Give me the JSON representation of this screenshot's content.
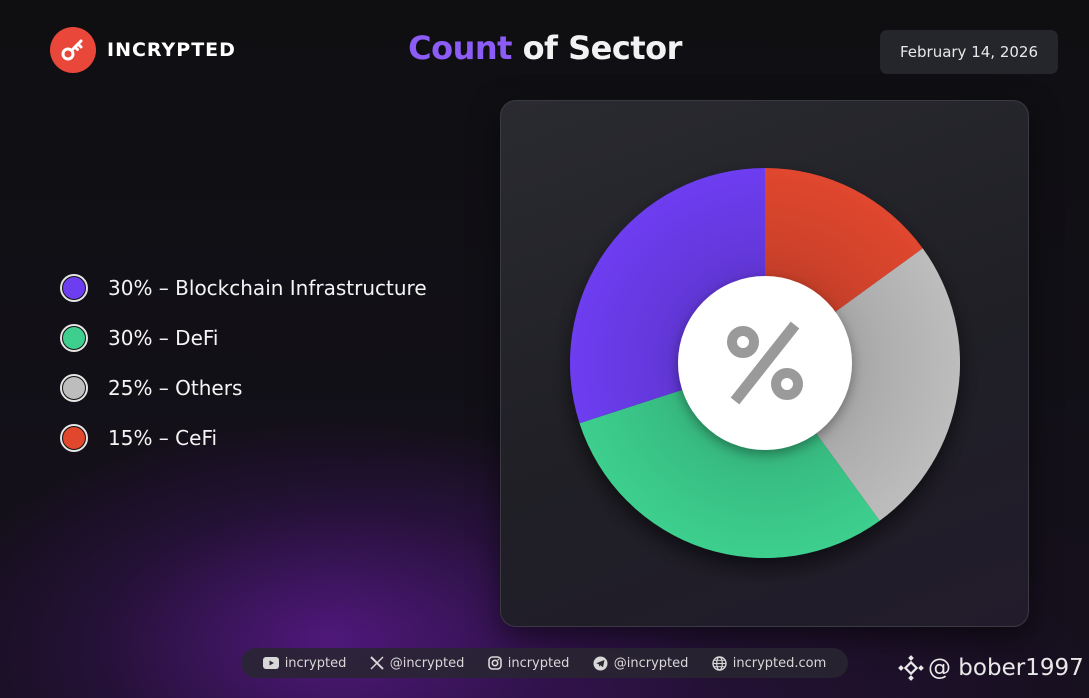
{
  "brand": {
    "name": "INCRYPTED",
    "logo_color": "#e8473a"
  },
  "title": {
    "accent": "Count",
    "rest": " of Sector",
    "accent_color": "#8b5cf6"
  },
  "date": "February 14, 2026",
  "center_icon": "percent-icon",
  "chart_data": {
    "type": "pie",
    "title": "Count of Sector",
    "donut": true,
    "start_angle": "12 o'clock, clockwise",
    "legend_placement": "left",
    "slices": [
      {
        "label": "CeFi",
        "value": 15,
        "legend_text": "15% – CeFi",
        "color": "#e0472d"
      },
      {
        "label": "Others",
        "value": 25,
        "legend_text": "25% – Others",
        "color": "#bdbdbd"
      },
      {
        "label": "DeFi",
        "value": 30,
        "legend_text": "30% – DeFi",
        "color": "#3ecf8e"
      },
      {
        "label": "Blockchain Infrastructure",
        "value": 30,
        "legend_text": "30% – Blockchain Infrastructure",
        "color": "#6d3df0"
      }
    ],
    "legend_order": [
      "Blockchain Infrastructure",
      "DeFi",
      "Others",
      "CeFi"
    ]
  },
  "footer": {
    "items": [
      {
        "icon": "youtube-icon",
        "text": "incrypted"
      },
      {
        "icon": "x-icon",
        "text": "@incrypted"
      },
      {
        "icon": "instagram-icon",
        "text": "incrypted"
      },
      {
        "icon": "telegram-icon",
        "text": "@incrypted"
      },
      {
        "icon": "globe-icon",
        "text": "incrypted.com"
      }
    ]
  },
  "watermark": {
    "icon": "binance-icon",
    "text": "@ bober1997"
  }
}
